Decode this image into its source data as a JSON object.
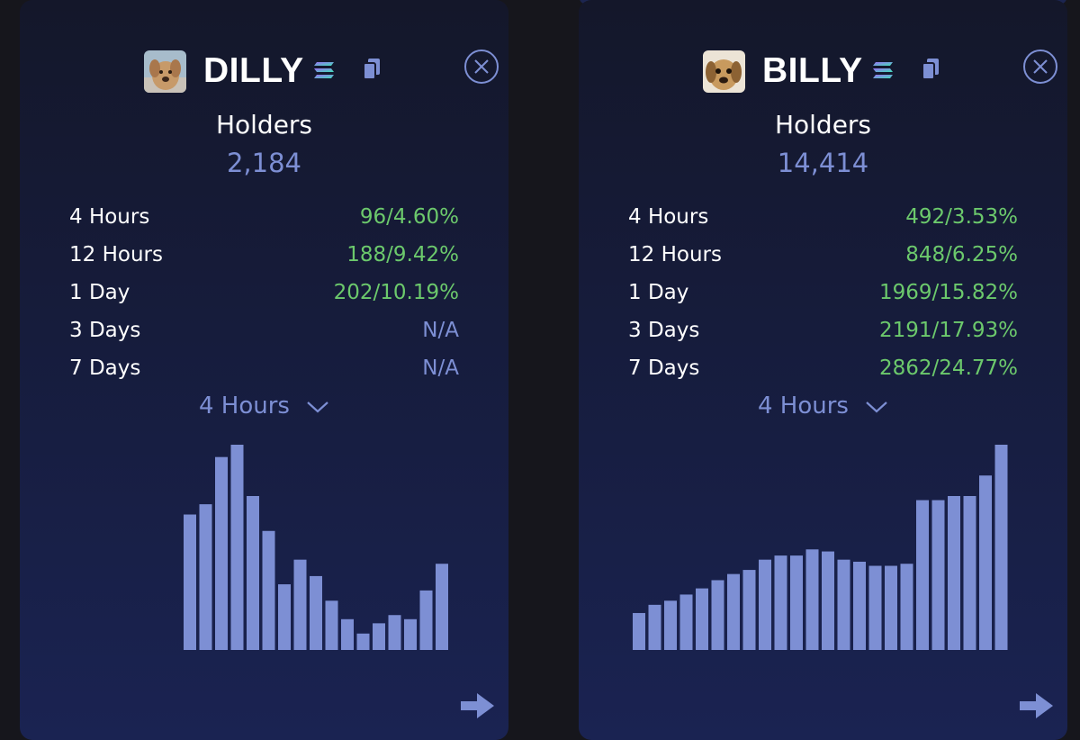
{
  "colors": {
    "accent": "#7d8fd4",
    "positive": "#6cc96c",
    "text": "#ffffff",
    "background": "#16161c"
  },
  "cards": [
    {
      "token": "DILLY",
      "avatar_icon": "dog-avatar",
      "chain_icon": "solana-icon",
      "holders_label": "Holders",
      "holders_count": "2,184",
      "stats": [
        {
          "label": "4 Hours",
          "value": "96/4.60%",
          "status": "positive"
        },
        {
          "label": "12 Hours",
          "value": "188/9.42%",
          "status": "positive"
        },
        {
          "label": "1 Day",
          "value": "202/10.19%",
          "status": "positive"
        },
        {
          "label": "3 Days",
          "value": "N/A",
          "status": "na"
        },
        {
          "label": "7 Days",
          "value": "N/A",
          "status": "na"
        }
      ],
      "timeframe": "4 Hours",
      "chart_data": {
        "type": "bar",
        "ylim": [
          0,
          100
        ],
        "values": [
          66,
          71,
          94,
          100,
          75,
          58,
          32,
          44,
          36,
          24,
          15,
          8,
          13,
          17,
          15,
          29,
          42
        ]
      }
    },
    {
      "token": "BILLY",
      "avatar_icon": "dog-avatar",
      "chain_icon": "solana-icon",
      "holders_label": "Holders",
      "holders_count": "14,414",
      "stats": [
        {
          "label": "4 Hours",
          "value": "492/3.53%",
          "status": "positive"
        },
        {
          "label": "12 Hours",
          "value": "848/6.25%",
          "status": "positive"
        },
        {
          "label": "1 Day",
          "value": "1969/15.82%",
          "status": "positive"
        },
        {
          "label": "3 Days",
          "value": "2191/17.93%",
          "status": "positive"
        },
        {
          "label": "7 Days",
          "value": "2862/24.77%",
          "status": "positive"
        }
      ],
      "timeframe": "4 Hours",
      "chart_data": {
        "type": "bar",
        "ylim": [
          0,
          100
        ],
        "values": [
          18,
          22,
          24,
          27,
          30,
          34,
          37,
          39,
          44,
          46,
          46,
          49,
          48,
          44,
          43,
          41,
          41,
          42,
          73,
          73,
          75,
          75,
          85,
          100
        ]
      }
    }
  ]
}
